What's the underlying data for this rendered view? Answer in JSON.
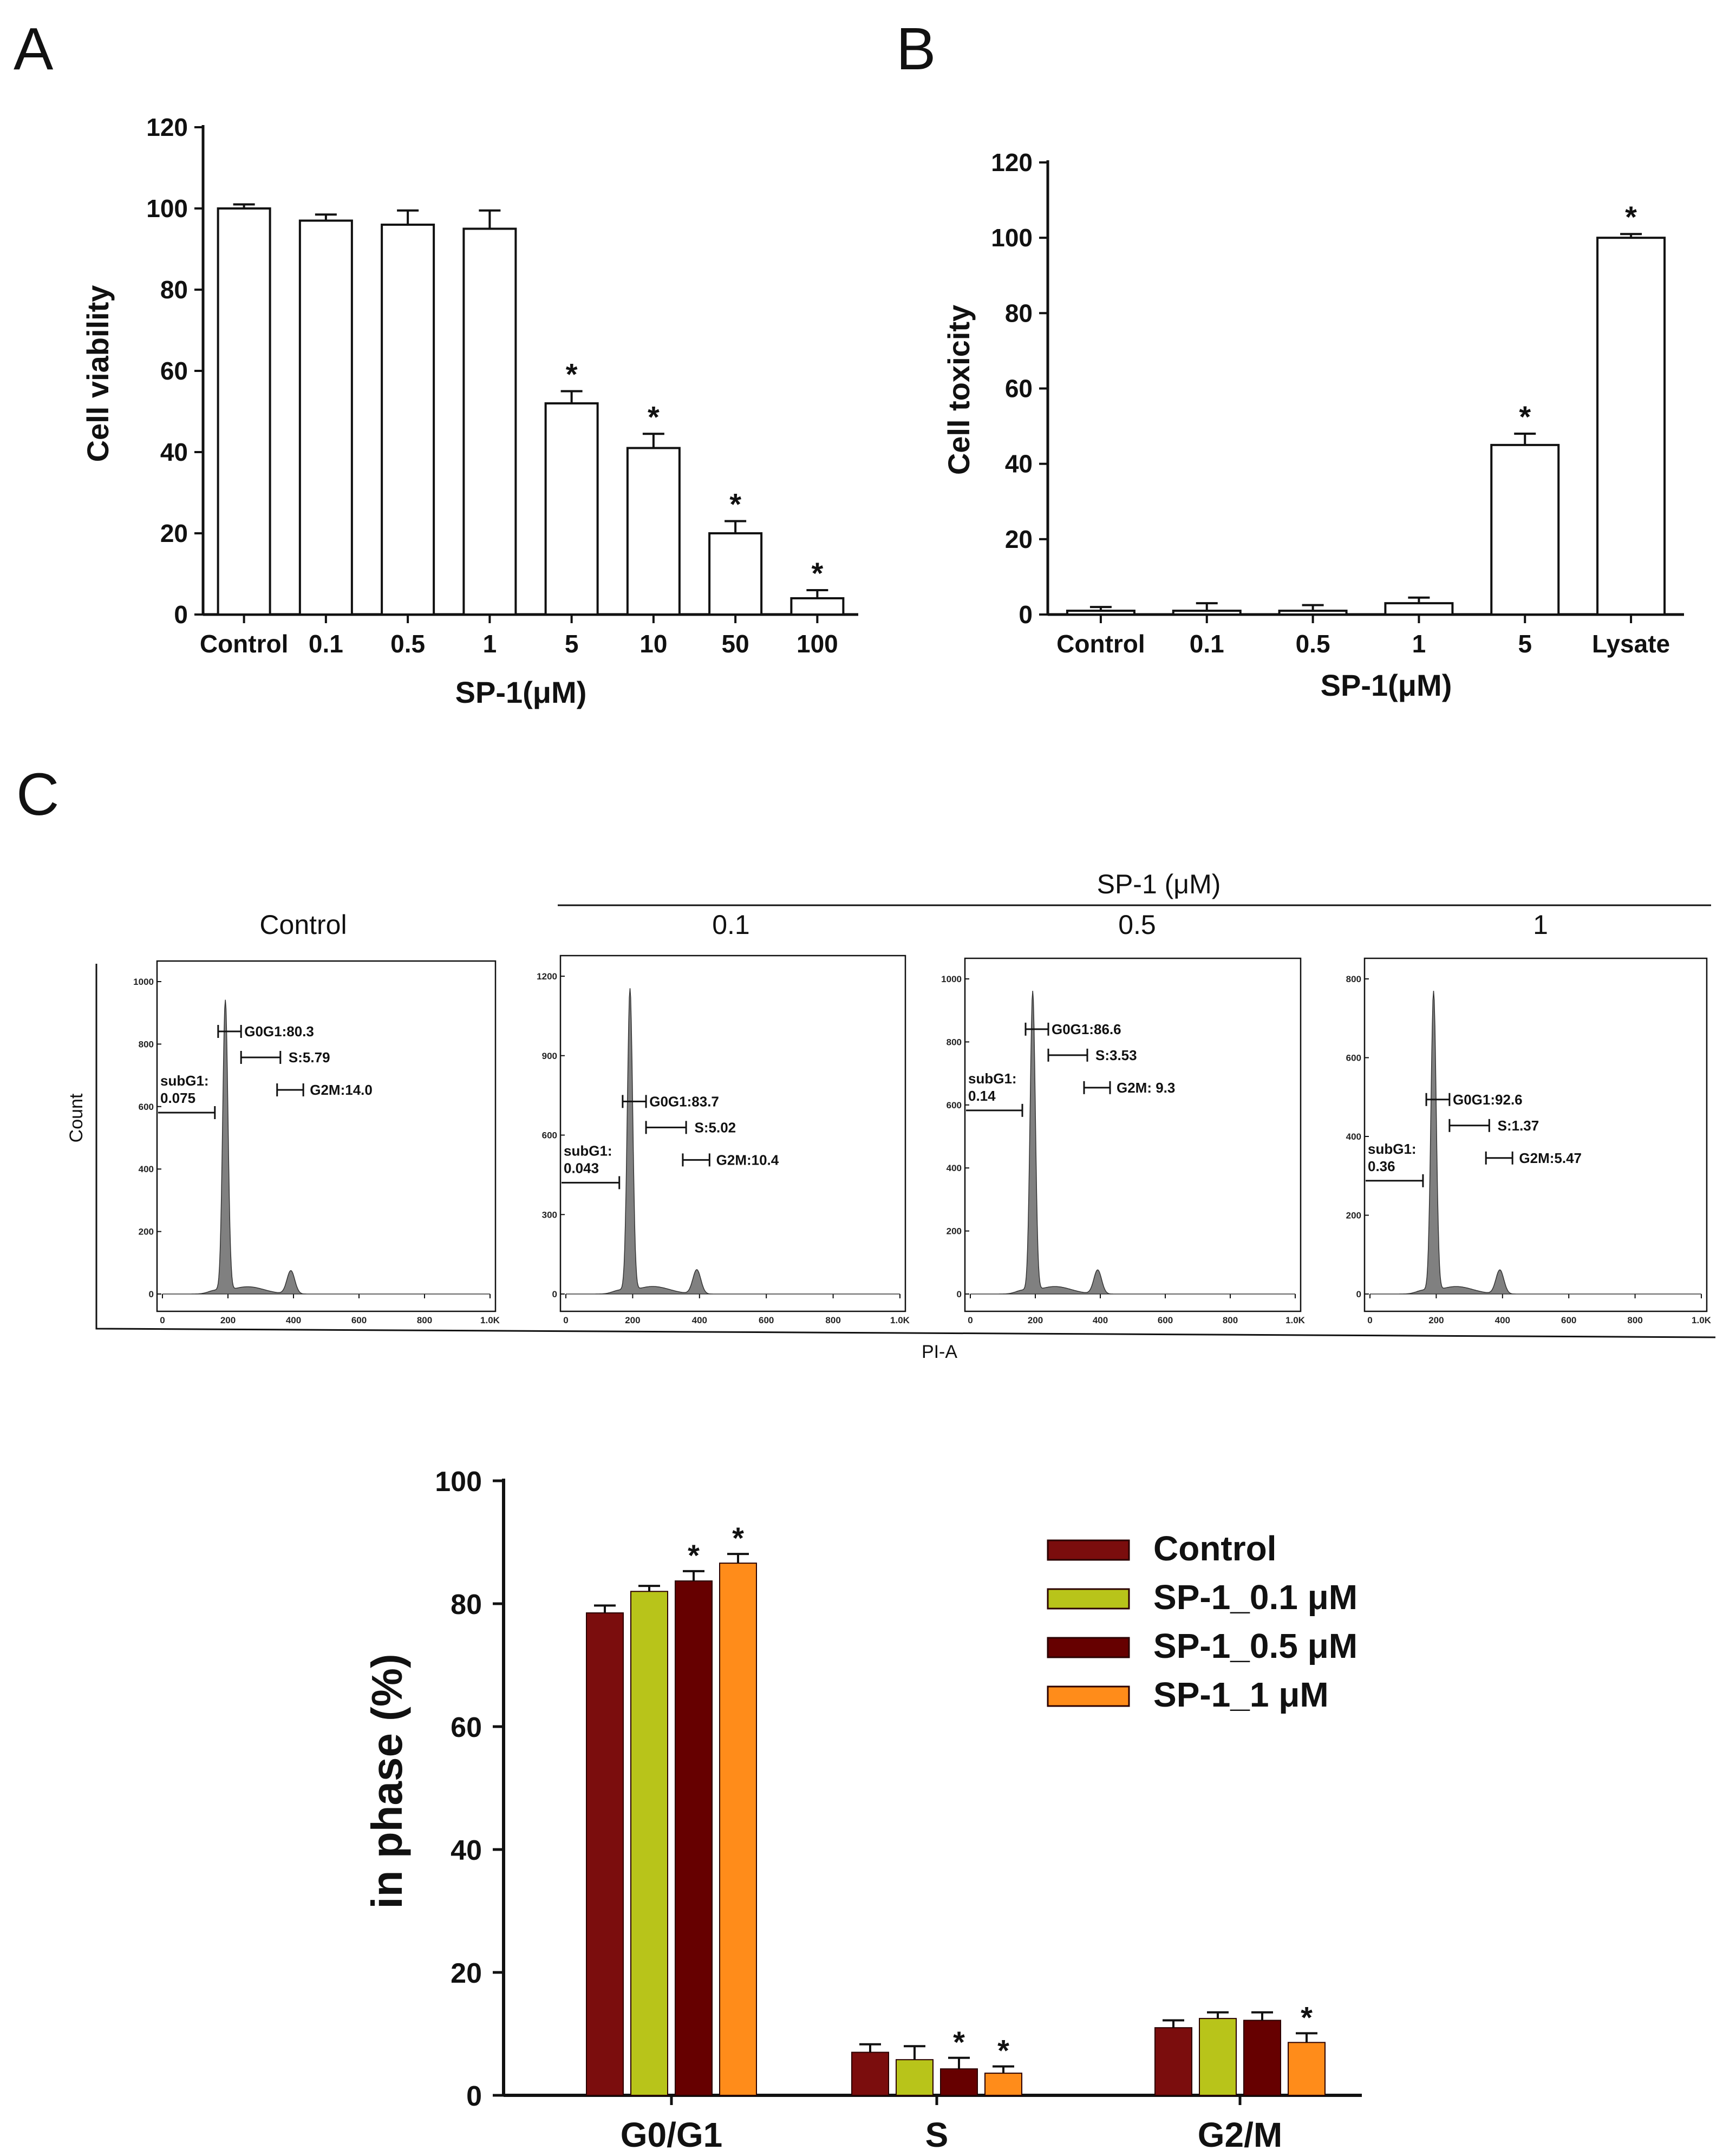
{
  "panels": {
    "a": "A",
    "b": "B",
    "c": "C"
  },
  "colors": {
    "control": "#7b0d0d",
    "sp1_01": "#b8c41a",
    "sp1_05": "#660000",
    "sp1_1": "#ff8c1a",
    "hist_fill": "#808080"
  },
  "chart_data": [
    {
      "id": "A",
      "type": "bar",
      "ylabel": "Cell viability",
      "xlabel": "SP-1(μM)",
      "ylim": [
        0,
        120
      ],
      "yticks": [
        "0",
        "20",
        "40",
        "60",
        "80",
        "100",
        "120"
      ],
      "categories": [
        "Control",
        "0.1",
        "0.5",
        "1",
        "5",
        "10",
        "50",
        "100"
      ],
      "values": [
        100,
        97,
        96,
        95,
        52,
        41,
        20,
        4
      ],
      "errors": [
        1,
        1.5,
        3.5,
        4.5,
        3,
        3.5,
        3,
        2
      ],
      "significance": [
        "",
        "",
        "",
        "",
        "*",
        "*",
        "*",
        "*"
      ]
    },
    {
      "id": "B",
      "type": "bar",
      "ylabel": "Cell toxicity",
      "xlabel": "SP-1(μM)",
      "ylim": [
        0,
        120
      ],
      "yticks": [
        "0",
        "20",
        "40",
        "60",
        "80",
        "100",
        "120"
      ],
      "categories": [
        "Control",
        "0.1",
        "0.5",
        "1",
        "5",
        "Lysate"
      ],
      "values": [
        1,
        1,
        1,
        3,
        45,
        100
      ],
      "errors": [
        1,
        2,
        1.5,
        1.5,
        3,
        1
      ],
      "significance": [
        "",
        "",
        "",
        "",
        "*",
        "*"
      ]
    },
    {
      "id": "C-histograms",
      "type": "histogram",
      "group_label": "SP-1 (μM)",
      "ylabel": "Count",
      "xlabel": "PI-A",
      "panels": [
        {
          "title": "Control",
          "ymax": 1000,
          "yticks": [
            "0",
            "200",
            "400",
            "600",
            "800",
            "1000"
          ],
          "xticks": [
            "0",
            "200",
            "400",
            "600",
            "800",
            "1.0K"
          ],
          "gates": {
            "subG1_label": "subG1:",
            "subG1_value": "0.075",
            "g0g1": "G0G1:80.3",
            "s": "S:5.79",
            "g2m": "G2M:14.0"
          }
        },
        {
          "title": "0.1",
          "ymax": 1200,
          "yticks": [
            "0",
            "300",
            "600",
            "900",
            "1200"
          ],
          "xticks": [
            "0",
            "200",
            "400",
            "600",
            "800",
            "1.0K"
          ],
          "gates": {
            "subG1_label": "subG1:",
            "subG1_value": "0.043",
            "g0g1": "G0G1:83.7",
            "s": "S:5.02",
            "g2m": "G2M:10.4"
          }
        },
        {
          "title": "0.5",
          "ymax": 1000,
          "yticks": [
            "0",
            "200",
            "400",
            "600",
            "800",
            "1000"
          ],
          "xticks": [
            "0",
            "200",
            "400",
            "600",
            "800",
            "1.0K"
          ],
          "gates": {
            "subG1_label": "subG1:",
            "subG1_value": "0.14",
            "g0g1": "G0G1:86.6",
            "s": "S:3.53",
            "g2m": "G2M: 9.3"
          }
        },
        {
          "title": "1",
          "ymax": 800,
          "yticks": [
            "0",
            "200",
            "400",
            "600",
            "800"
          ],
          "xticks": [
            "0",
            "200",
            "400",
            "600",
            "800",
            "1.0K"
          ],
          "gates": {
            "subG1_label": "subG1:",
            "subG1_value": "0.36",
            "g0g1": "G0G1:92.6",
            "s": "S:1.37",
            "g2m": "G2M:5.47"
          }
        }
      ]
    },
    {
      "id": "C-bars",
      "type": "bar",
      "ylabel": "in phase (%)",
      "ylim": [
        0,
        100
      ],
      "yticks": [
        "0",
        "20",
        "40",
        "60",
        "80",
        "100"
      ],
      "categories": [
        "G0/G1",
        "S",
        "G2/M"
      ],
      "series": [
        {
          "name": "Control",
          "values": [
            78.5,
            7,
            11
          ],
          "errors": [
            1.2,
            1.3,
            1.2
          ],
          "significance": [
            "",
            "",
            ""
          ]
        },
        {
          "name": "SP-1_0.1 μM",
          "values": [
            82,
            5.8,
            12.5
          ],
          "errors": [
            0.9,
            2.2,
            1
          ],
          "significance": [
            "",
            "",
            ""
          ]
        },
        {
          "name": "SP-1_0.5 μM",
          "values": [
            83.7,
            4.3,
            12.2
          ],
          "errors": [
            1.6,
            1.8,
            1.3
          ],
          "significance": [
            "*",
            "*",
            ""
          ]
        },
        {
          "name": "SP-1_1 μM",
          "values": [
            86.6,
            3.6,
            8.6
          ],
          "errors": [
            1.5,
            1.1,
            1.5
          ],
          "significance": [
            "*",
            "*",
            "*"
          ]
        }
      ]
    }
  ]
}
